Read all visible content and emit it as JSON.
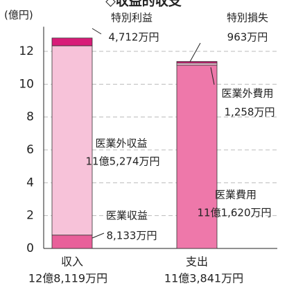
{
  "chart_data": {
    "type": "stacked_bar",
    "title": "◇収益的収支",
    "y_axis_label": "(億円)",
    "categories": [
      "収入",
      "支出"
    ],
    "total_labels": [
      "12億8,119万円",
      "11億3,841万円"
    ],
    "series": [
      {
        "name": "医業収益",
        "color": "#e8609a",
        "values": [
          0.8133,
          null
        ],
        "value_labels": [
          "8,133万円",
          null
        ]
      },
      {
        "name": "医業外収益",
        "color": "#f7c2d9",
        "values": [
          11.5274,
          null
        ],
        "value_labels": [
          "11億5,274万円",
          null
        ]
      },
      {
        "name": "特別利益",
        "color": "#d81b78",
        "values": [
          0.4712,
          null
        ],
        "value_labels": [
          "4,712万円",
          null
        ]
      },
      {
        "name": "医業費用",
        "color": "#ee78aa",
        "values": [
          null,
          11.162
        ],
        "value_labels": [
          null,
          "11億1,620万円"
        ]
      },
      {
        "name": "医業外費用",
        "color": "#f7c8dc",
        "values": [
          null,
          0.1258
        ],
        "value_labels": [
          null,
          "1,258万円"
        ]
      },
      {
        "name": "特別損失",
        "color": "#d81b78",
        "values": [
          null,
          0.0963
        ],
        "value_labels": [
          null,
          "963万円"
        ]
      }
    ],
    "ylim": [
      0,
      13.5
    ],
    "yticks": [
      0,
      2,
      4,
      6,
      8,
      10,
      12
    ],
    "grid": true
  }
}
